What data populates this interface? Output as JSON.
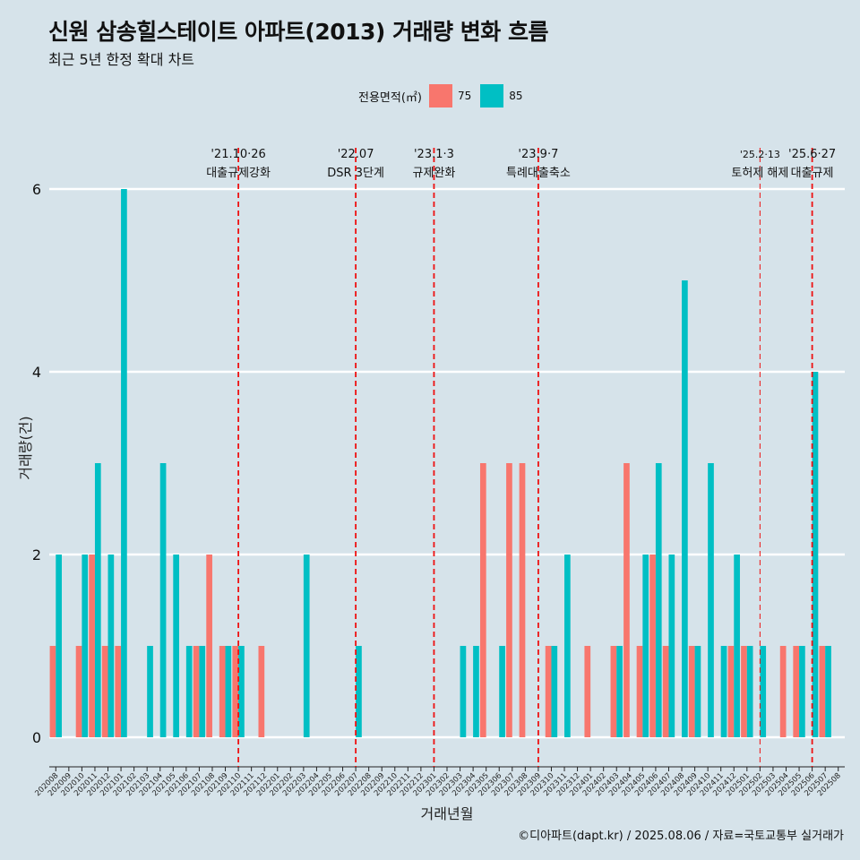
{
  "title": "신원 삼송힐스테이트 아파트(2013) 거래량 변화 흐름",
  "subtitle": "최근 5년 한정 확대 차트",
  "legend": {
    "title": "전용면적(㎡)",
    "items": [
      {
        "name": "75",
        "color": "#f8766d"
      },
      {
        "name": "85",
        "color": "#00bfc4"
      }
    ]
  },
  "caption": "©디아파트(dapt.kr) / 2025.08.06 / 자료=국토교통부 실거래가",
  "chart_data": {
    "type": "bar",
    "xlabel": "거래년월",
    "ylabel": "거래량(건)",
    "ylim": [
      0,
      6
    ],
    "yticks": [
      0,
      2,
      4,
      6
    ],
    "grid": "horizontal",
    "legend_position": "top",
    "categories": [
      "202008",
      "202009",
      "202010",
      "202011",
      "202012",
      "202101",
      "202102",
      "202103",
      "202104",
      "202105",
      "202106",
      "202107",
      "202108",
      "202109",
      "202110",
      "202111",
      "202112",
      "202201",
      "202202",
      "202203",
      "202204",
      "202205",
      "202206",
      "202207",
      "202208",
      "202209",
      "202210",
      "202211",
      "202212",
      "202301",
      "202302",
      "202303",
      "202304",
      "202305",
      "202306",
      "202307",
      "202308",
      "202309",
      "202310",
      "202311",
      "202312",
      "202401",
      "202402",
      "202403",
      "202404",
      "202405",
      "202406",
      "202407",
      "202408",
      "202409",
      "202410",
      "202411",
      "202412",
      "202501",
      "202502",
      "202503",
      "202504",
      "202505",
      "202506",
      "202507",
      "202508"
    ],
    "series": [
      {
        "name": "75",
        "color": "#f8766d",
        "values": [
          1,
          0,
          1,
          2,
          1,
          1,
          0,
          0,
          0,
          0,
          0,
          1,
          2,
          1,
          1,
          0,
          1,
          0,
          0,
          0,
          0,
          0,
          0,
          0,
          0,
          0,
          0,
          0,
          0,
          0,
          0,
          0,
          0,
          3,
          0,
          3,
          3,
          0,
          1,
          0,
          0,
          1,
          0,
          1,
          3,
          1,
          2,
          1,
          0,
          1,
          0,
          0,
          1,
          1,
          0,
          0,
          1,
          1,
          0,
          1,
          0
        ]
      },
      {
        "name": "85",
        "color": "#00bfc4",
        "values": [
          2,
          0,
          2,
          3,
          2,
          6,
          0,
          1,
          3,
          2,
          1,
          1,
          0,
          1,
          1,
          0,
          0,
          0,
          0,
          2,
          0,
          0,
          0,
          1,
          0,
          0,
          0,
          0,
          0,
          0,
          0,
          1,
          1,
          0,
          1,
          0,
          0,
          0,
          1,
          2,
          0,
          0,
          0,
          1,
          0,
          2,
          3,
          2,
          5,
          1,
          3,
          1,
          2,
          1,
          1,
          0,
          0,
          1,
          4,
          1,
          0
        ]
      }
    ],
    "annotations": [
      {
        "at": "202110",
        "date": "'21.10·26",
        "label": "대출규제강화"
      },
      {
        "at": "202207",
        "date": "'22.07",
        "label": "DSR 3단계"
      },
      {
        "at": "202301",
        "date": "'23.1·3",
        "label": "규제완화"
      },
      {
        "at": "202309",
        "date": "'23.9·7",
        "label": "특례대출축소"
      },
      {
        "at": "202502",
        "date": "'25.2·13",
        "label": "토허제 해제"
      },
      {
        "at": "202506",
        "date": "'25.6·27",
        "label": "대출규제"
      }
    ]
  }
}
